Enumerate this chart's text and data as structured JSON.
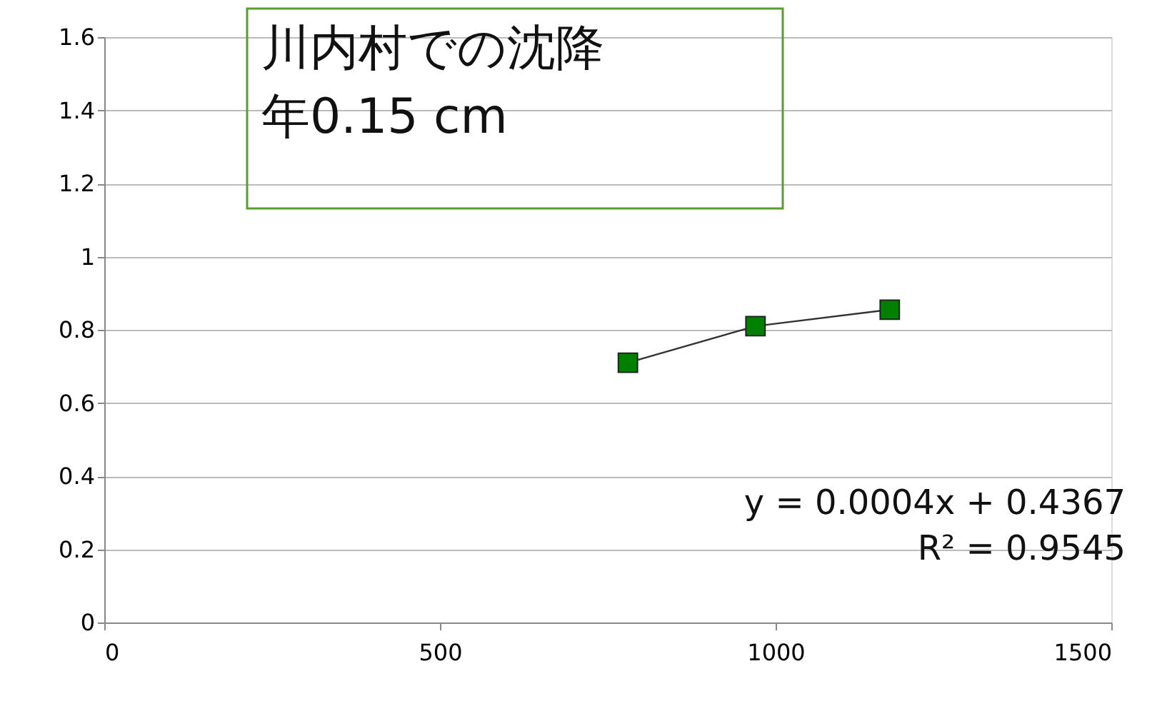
{
  "chart_data": {
    "type": "line",
    "x": [
      780,
      970,
      1170
    ],
    "series": [
      {
        "color": "#008000",
        "values": [
          0.71,
          0.81,
          0.855
        ]
      }
    ],
    "marker": "square",
    "line_style": "solid",
    "grid": "y",
    "xlim": [
      0,
      1500
    ],
    "xticks": [
      0,
      500,
      1000,
      1500
    ],
    "ylim": [
      0,
      1.6
    ],
    "yticks": [
      0,
      0.2,
      0.4,
      0.6,
      0.8,
      1,
      1.2,
      1.4,
      1.6
    ],
    "annotations": [
      "川内村での沈降年0.15 cm",
      "y = 0.0004x + 0.4367\nR² = 0.9545"
    ]
  }
}
